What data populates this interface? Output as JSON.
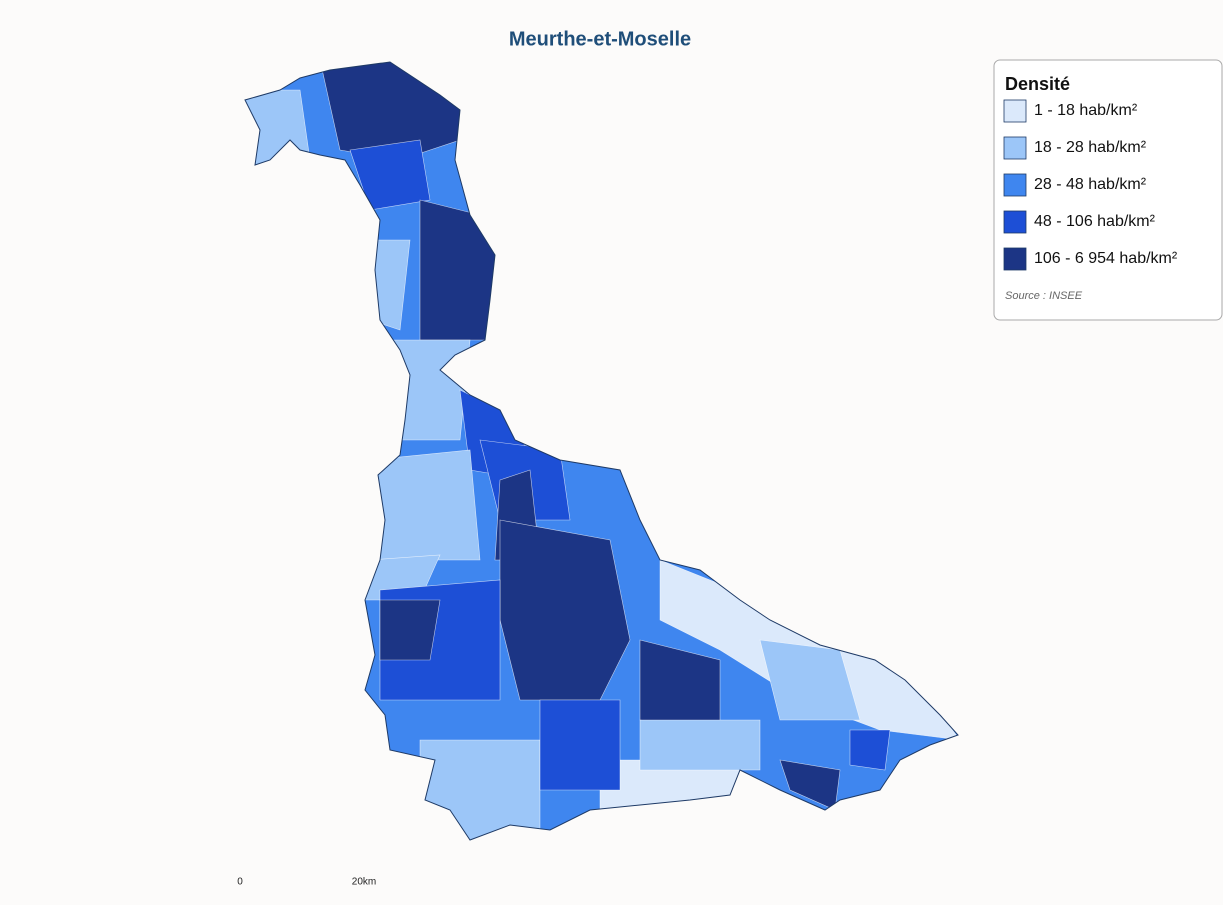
{
  "title": "Meurthe-et-Moselle",
  "legend": {
    "title": "Densité",
    "items": [
      {
        "label": "1 - 18 hab/km²",
        "color": "#dbe9fb"
      },
      {
        "label": "18 - 28 hab/km²",
        "color": "#9cc6f8"
      },
      {
        "label": "28 - 48 hab/km²",
        "color": "#3f86ef"
      },
      {
        "label": "48 - 106 hab/km²",
        "color": "#1d4fd6"
      },
      {
        "label": "106 - 6 954 hab/km²",
        "color": "#1c3585"
      }
    ],
    "source": "Source : INSEE"
  },
  "scale": {
    "start": "0",
    "end": "20km"
  }
}
